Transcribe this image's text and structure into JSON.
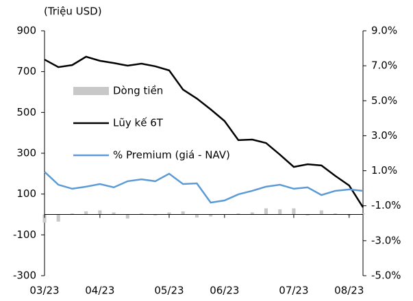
{
  "chart_data": {
    "type": "combo",
    "y_label": "(Triệu USD)",
    "categories": [
      "03/23",
      null,
      null,
      null,
      "04/23",
      null,
      null,
      null,
      null,
      "05/23",
      null,
      null,
      null,
      "06/23",
      null,
      null,
      null,
      null,
      "07/23",
      null,
      null,
      null,
      "08/23",
      null
    ],
    "ylim": [
      -300,
      900
    ],
    "yticks": [
      -300,
      -100,
      100,
      300,
      500,
      700,
      900
    ],
    "y2lim": [
      -5,
      9
    ],
    "y2ticks": [
      {
        "value": -5,
        "label": "-5.0%"
      },
      {
        "value": -3,
        "label": "-3.0%"
      },
      {
        "value": -1,
        "label": "-1.0%"
      },
      {
        "value": 1,
        "label": "1.0%"
      },
      {
        "value": 3,
        "label": "3.0%"
      },
      {
        "value": 5,
        "label": "5.0%"
      },
      {
        "value": 7,
        "label": "7.0%"
      },
      {
        "value": 9,
        "label": "9.0%"
      }
    ],
    "series": [
      {
        "name": "Dòng tiền",
        "kind": "bar",
        "color": "#c8c8c8",
        "values": [
          -40,
          -35,
          5,
          15,
          20,
          10,
          -20,
          5,
          -5,
          10,
          15,
          -15,
          -10,
          0,
          5,
          10,
          30,
          25,
          30,
          -5,
          20,
          5,
          -5,
          5
        ]
      },
      {
        "name": "Lũy kế 6T",
        "kind": "line",
        "color": "#000000",
        "values": [
          759,
          722,
          732,
          773,
          753,
          742,
          729,
          739,
          726,
          706,
          612,
          568,
          515,
          458,
          364,
          367,
          350,
          293,
          233,
          246,
          240,
          189,
          142,
          35
        ]
      },
      {
        "name": "% Premium (giá - NAV)",
        "kind": "line",
        "axis": "y2",
        "color": "#5b9bd5",
        "values": [
          0.94,
          0.2,
          -0.03,
          0.09,
          0.24,
          0.05,
          0.4,
          0.51,
          0.4,
          0.83,
          0.24,
          0.28,
          -0.82,
          -0.7,
          -0.35,
          -0.15,
          0.09,
          0.2,
          -0.03,
          0.05,
          -0.39,
          -0.15,
          -0.07,
          -0.15
        ]
      }
    ]
  }
}
